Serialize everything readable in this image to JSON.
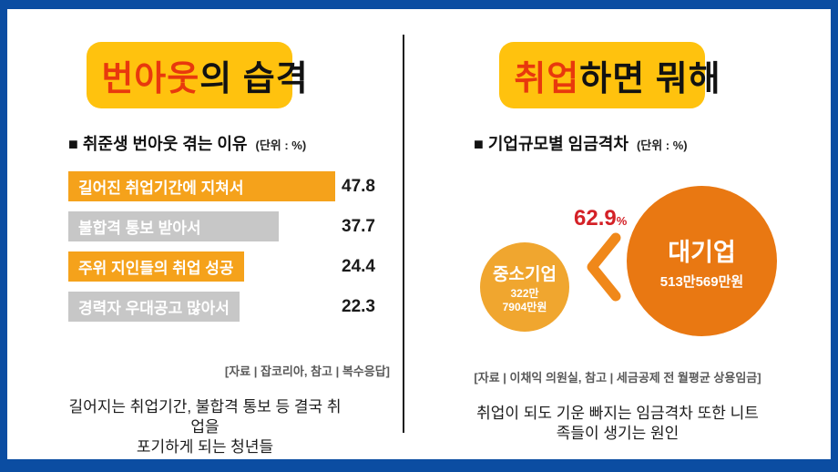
{
  "colors": {
    "frame_blue": "#0B4DA2",
    "highlight_yellow": "#FFC20E",
    "title_red": "#E8380D",
    "bar_orange": "#F5A21B",
    "bar_gray": "#C7C7C7",
    "gap_red": "#D42127",
    "chevron_orange": "#F0881A",
    "small_circle_orange": "#F0A62F",
    "large_circle_orange": "#E97812",
    "source_gray": "#595959"
  },
  "left_panel": {
    "title": {
      "highlight_text": "번아웃",
      "rest_text": "의 습격"
    },
    "subtitle": {
      "bullet": "■",
      "text": " 취준생 번아웃 겪는 이유",
      "unit": "(단위 : %)"
    },
    "source": "[자료 | 잡코리아, 참고 | 복수응답]",
    "caption_lines": [
      "길어지는 취업기간, 불합격 통보 등 결국 취",
      "업을",
      "포기하게 되는 청년들"
    ]
  },
  "right_panel": {
    "title": {
      "highlight_text": "취업",
      "rest_text": "하면 뭐해"
    },
    "subtitle": {
      "bullet": "■",
      "text": " 기업규모별 임금격차",
      "unit": "(단위 : %)"
    },
    "comparison": {
      "gap_value": "62.9",
      "gap_unit": "%",
      "small_circle": {
        "name": "중소기업",
        "amount_line1": "322만",
        "amount_line2": "7904만원"
      },
      "large_circle": {
        "name": "대기업",
        "amount": "513만569만원"
      }
    },
    "source": "[자료 | 이채익 의원실, 참고 | 세금공제 전 월평균 상용임금]",
    "caption_lines": [
      "취업이 되도 기운 빠지는 임금격차 또한 니트",
      "족들이 생기는 원인"
    ]
  },
  "chart_data": [
    {
      "type": "bar",
      "orientation": "horizontal",
      "title": "취준생 번아웃 겪는 이유",
      "unit": "%",
      "categories": [
        "길어진 취업기간에 지쳐서",
        "불합격 통보 받아서",
        "주위 지인들의 취업 성공",
        "경력자 우대공고 많아서"
      ],
      "values": [
        47.8,
        37.7,
        24.4,
        22.3
      ],
      "value_labels": [
        "47.8",
        "37.7",
        "24.4",
        "22.3"
      ],
      "bar_colors": [
        "#F5A21B",
        "#C7C7C7",
        "#F5A21B",
        "#C7C7C7"
      ],
      "xlim": [
        0,
        47.8
      ],
      "grid": false,
      "legend": false,
      "source": "[자료 | 잡코리아, 참고 | 복수응답]"
    },
    {
      "type": "bar",
      "style": "proportional-circle-comparison",
      "title": "기업규모별 임금격차",
      "unit": "%",
      "categories": [
        "중소기업",
        "대기업"
      ],
      "value_labels": [
        "322만7904만원",
        "513만569만원"
      ],
      "gap_label": "62.9%",
      "relation": "중소기업 < 대기업",
      "source": "[자료 | 이채익 의원실, 참고 | 세금공제 전 월평균 상용임금]"
    }
  ]
}
